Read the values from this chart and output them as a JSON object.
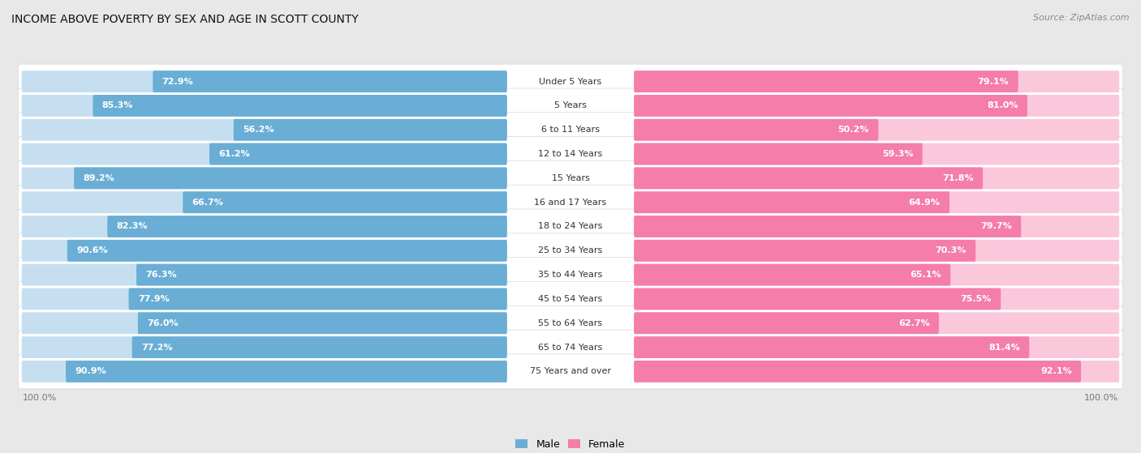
{
  "title": "INCOME ABOVE POVERTY BY SEX AND AGE IN SCOTT COUNTY",
  "source": "Source: ZipAtlas.com",
  "categories": [
    "Under 5 Years",
    "5 Years",
    "6 to 11 Years",
    "12 to 14 Years",
    "15 Years",
    "16 and 17 Years",
    "18 to 24 Years",
    "25 to 34 Years",
    "35 to 44 Years",
    "45 to 54 Years",
    "55 to 64 Years",
    "65 to 74 Years",
    "75 Years and over"
  ],
  "male_values": [
    72.9,
    85.3,
    56.2,
    61.2,
    89.2,
    66.7,
    82.3,
    90.6,
    76.3,
    77.9,
    76.0,
    77.2,
    90.9
  ],
  "female_values": [
    79.1,
    81.0,
    50.2,
    59.3,
    71.8,
    64.9,
    79.7,
    70.3,
    65.1,
    75.5,
    62.7,
    81.4,
    92.1
  ],
  "male_color": "#6aaed6",
  "female_color": "#f47daa",
  "male_light_color": "#c6dff0",
  "female_light_color": "#fac8da",
  "row_bg_color": "#ffffff",
  "row_border_color": "#d8d8d8",
  "outer_bg_color": "#e8e8e8",
  "text_dark": "#333333",
  "text_gray": "#777777",
  "max_value": 100.0,
  "title_fontsize": 10,
  "cat_fontsize": 8,
  "value_fontsize": 8,
  "legend_fontsize": 9,
  "source_fontsize": 8,
  "axis_label_fontsize": 8
}
